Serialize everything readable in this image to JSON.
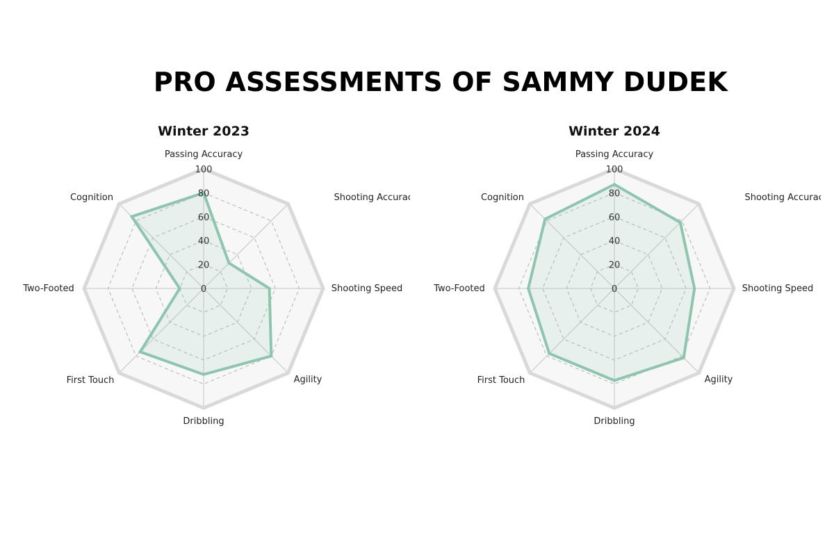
{
  "title": "PRO ASSESSMENTS OF SAMMY DUDEK",
  "chart_data": [
    {
      "type": "radar",
      "title": "Winter 2023",
      "axes": [
        "Passing Accuracy",
        "Shooting Accuracy",
        "Shooting Speed",
        "Agility",
        "Dribbling",
        "First Touch",
        "Two-Footed",
        "Cognition"
      ],
      "ticks": [
        "0",
        "20",
        "40",
        "60",
        "80",
        "100"
      ],
      "range": [
        0,
        100
      ],
      "values": [
        80,
        30,
        55,
        80,
        72,
        75,
        20,
        85
      ],
      "grid": true
    },
    {
      "type": "radar",
      "title": "Winter 2024",
      "axes": [
        "Passing Accuracy",
        "Shooting Accuracy",
        "Shooting Speed",
        "Agility",
        "Dribbling",
        "First Touch",
        "Two-Footed",
        "Cognition"
      ],
      "ticks": [
        "0",
        "20",
        "40",
        "60",
        "80",
        "100"
      ],
      "range": [
        0,
        100
      ],
      "values": [
        87,
        78,
        67,
        82,
        77,
        77,
        72,
        82
      ],
      "grid": true
    }
  ],
  "colors": {
    "series_line": "#8cc6b0",
    "series_fill": "#8cc6b0",
    "outer_ring": "#d9d9d9",
    "grid_dashed": "#b3b3b3",
    "spoke": "#c4c4c4",
    "background_fill": "#f7f7f7"
  }
}
